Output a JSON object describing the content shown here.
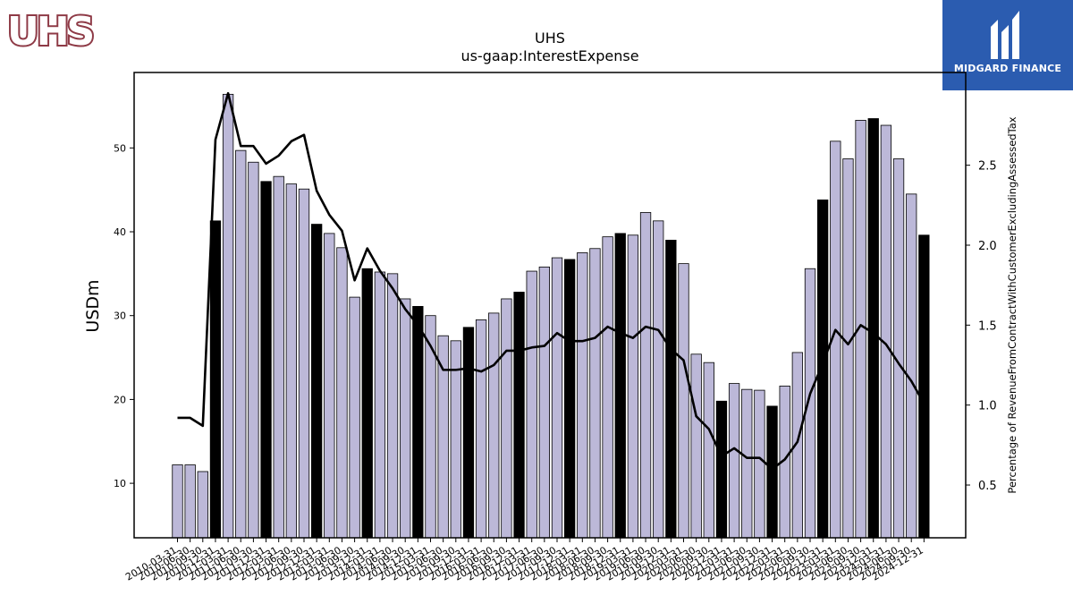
{
  "logos": {
    "company_logo_text": "UHS",
    "sponsor_name": "MIDGARD FINANCE"
  },
  "colors": {
    "bar_default": "#bcb8d8",
    "bar_q4": "#000000",
    "line": "#000000",
    "uhs_brand": "#8e3a46",
    "midgard_bg": "#2b5cb0"
  },
  "chart_data": {
    "type": "bar",
    "title": "UHS",
    "subtitle": "us-gaap:InterestExpense",
    "ylabel": "USDm",
    "y2label": "Percentage of RevenueFromContractWithCustomerExcludingAssessedTax",
    "ylim": [
      3.5,
      59
    ],
    "y2lim": [
      0.17,
      3.08
    ],
    "yticks": [
      10,
      20,
      30,
      40,
      50
    ],
    "y2ticks": [
      0.5,
      1.0,
      1.5,
      2.0,
      2.5
    ],
    "y2tick_labels": [
      "0.5",
      "1.0",
      "1.5",
      "2.0",
      "2.5"
    ],
    "categories": [
      "2010-03-31",
      "2010-06-30",
      "2010-09-30",
      "2010-12-31",
      "2011-03-31",
      "2011-06-30",
      "2011-09-30",
      "2011-12-31",
      "2012-03-31",
      "2012-06-30",
      "2012-09-30",
      "2012-12-31",
      "2013-03-31",
      "2013-06-30",
      "2013-09-30",
      "2013-12-31",
      "2014-03-31",
      "2014-06-30",
      "2014-09-30",
      "2014-12-31",
      "2015-03-31",
      "2015-06-30",
      "2015-09-30",
      "2015-12-31",
      "2016-03-31",
      "2016-06-30",
      "2016-09-30",
      "2016-12-31",
      "2017-03-31",
      "2017-06-30",
      "2017-09-30",
      "2017-12-31",
      "2018-03-31",
      "2018-06-30",
      "2018-09-30",
      "2018-12-31",
      "2019-03-31",
      "2019-06-30",
      "2019-09-30",
      "2019-12-31",
      "2020-03-31",
      "2020-06-30",
      "2020-09-30",
      "2020-12-31",
      "2021-03-31",
      "2021-06-30",
      "2021-09-30",
      "2021-12-31",
      "2022-03-31",
      "2022-06-30",
      "2022-09-30",
      "2022-12-31",
      "2023-03-31",
      "2023-06-30",
      "2023-09-30",
      "2023-12-31",
      "2024-03-31",
      "2024-06-30",
      "2024-09-30",
      "2024-12-31"
    ],
    "series": [
      {
        "kind": "bar",
        "values": [
          12.2,
          12.2,
          11.4,
          41.3,
          56.4,
          49.7,
          48.3,
          46.0,
          46.6,
          45.7,
          45.1,
          40.9,
          39.8,
          38.1,
          32.2,
          35.6,
          35.2,
          35.0,
          32.0,
          31.1,
          30.0,
          27.6,
          27.0,
          28.6,
          29.5,
          30.3,
          32.0,
          32.8,
          35.3,
          35.8,
          36.9,
          36.7,
          37.5,
          38.0,
          39.4,
          39.8,
          39.6,
          42.3,
          41.3,
          39.0,
          36.2,
          25.4,
          24.4,
          19.8,
          21.9,
          21.2,
          21.1,
          19.2,
          21.6,
          25.6,
          35.6,
          43.8,
          50.8,
          48.7,
          53.3,
          53.5,
          52.7,
          48.7,
          44.5,
          39.6
        ]
      },
      {
        "kind": "line",
        "values": [
          0.92,
          0.92,
          0.87,
          2.66,
          2.95,
          2.62,
          2.62,
          2.51,
          2.56,
          2.65,
          2.69,
          2.34,
          2.19,
          2.09,
          1.78,
          1.98,
          1.84,
          1.73,
          1.6,
          1.5,
          1.37,
          1.22,
          1.22,
          1.23,
          1.21,
          1.25,
          1.34,
          1.34,
          1.36,
          1.37,
          1.45,
          1.4,
          1.4,
          1.42,
          1.49,
          1.45,
          1.42,
          1.49,
          1.47,
          1.35,
          1.28,
          0.93,
          0.85,
          0.68,
          0.73,
          0.67,
          0.67,
          0.6,
          0.66,
          0.77,
          1.07,
          1.26,
          1.47,
          1.38,
          1.5,
          1.45,
          1.38,
          1.26,
          1.15,
          1.01
        ]
      }
    ],
    "q4_highlight": true,
    "grid": false,
    "legend": "none"
  }
}
